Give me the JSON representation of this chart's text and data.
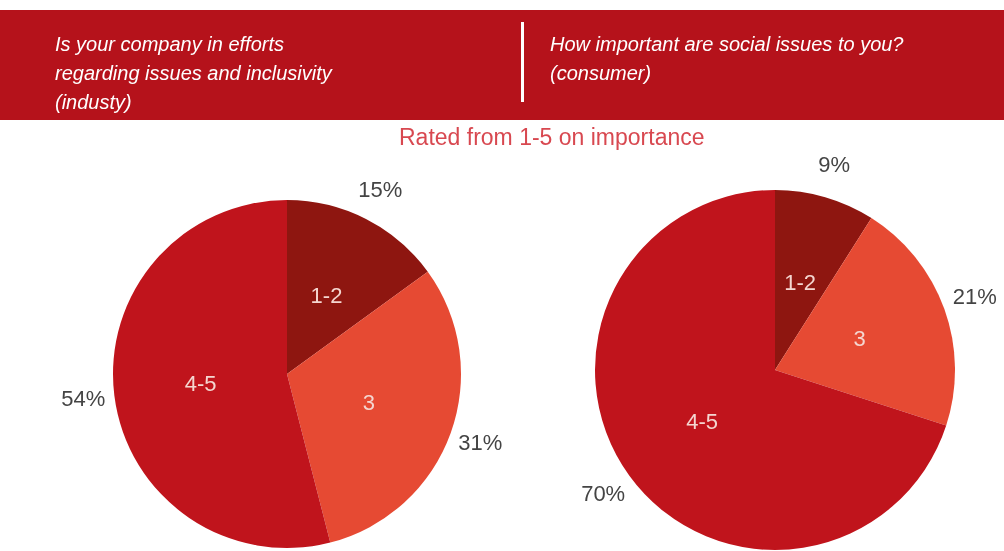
{
  "chart_data": [
    {
      "type": "pie",
      "title": "Is your company in efforts regarding issues and inclusivity (industy)",
      "subtitle": "Rated from 1-5 on importance",
      "categories": [
        "1-2",
        "3",
        "4-5"
      ],
      "values": [
        15,
        31,
        54
      ],
      "value_labels": [
        "15%",
        "31%",
        "54%"
      ],
      "colors": [
        "#8e1610",
        "#e64a33",
        "#c0141c"
      ],
      "legend": false
    },
    {
      "type": "pie",
      "title": "How important are social issues to you? (consumer)",
      "categories": [
        "1-2",
        "3",
        "4-5"
      ],
      "values": [
        9,
        21,
        70
      ],
      "value_labels": [
        "9%",
        "21%",
        "70%"
      ],
      "colors": [
        "#8e1610",
        "#e64a33",
        "#c0141c"
      ],
      "legend": false
    }
  ]
}
